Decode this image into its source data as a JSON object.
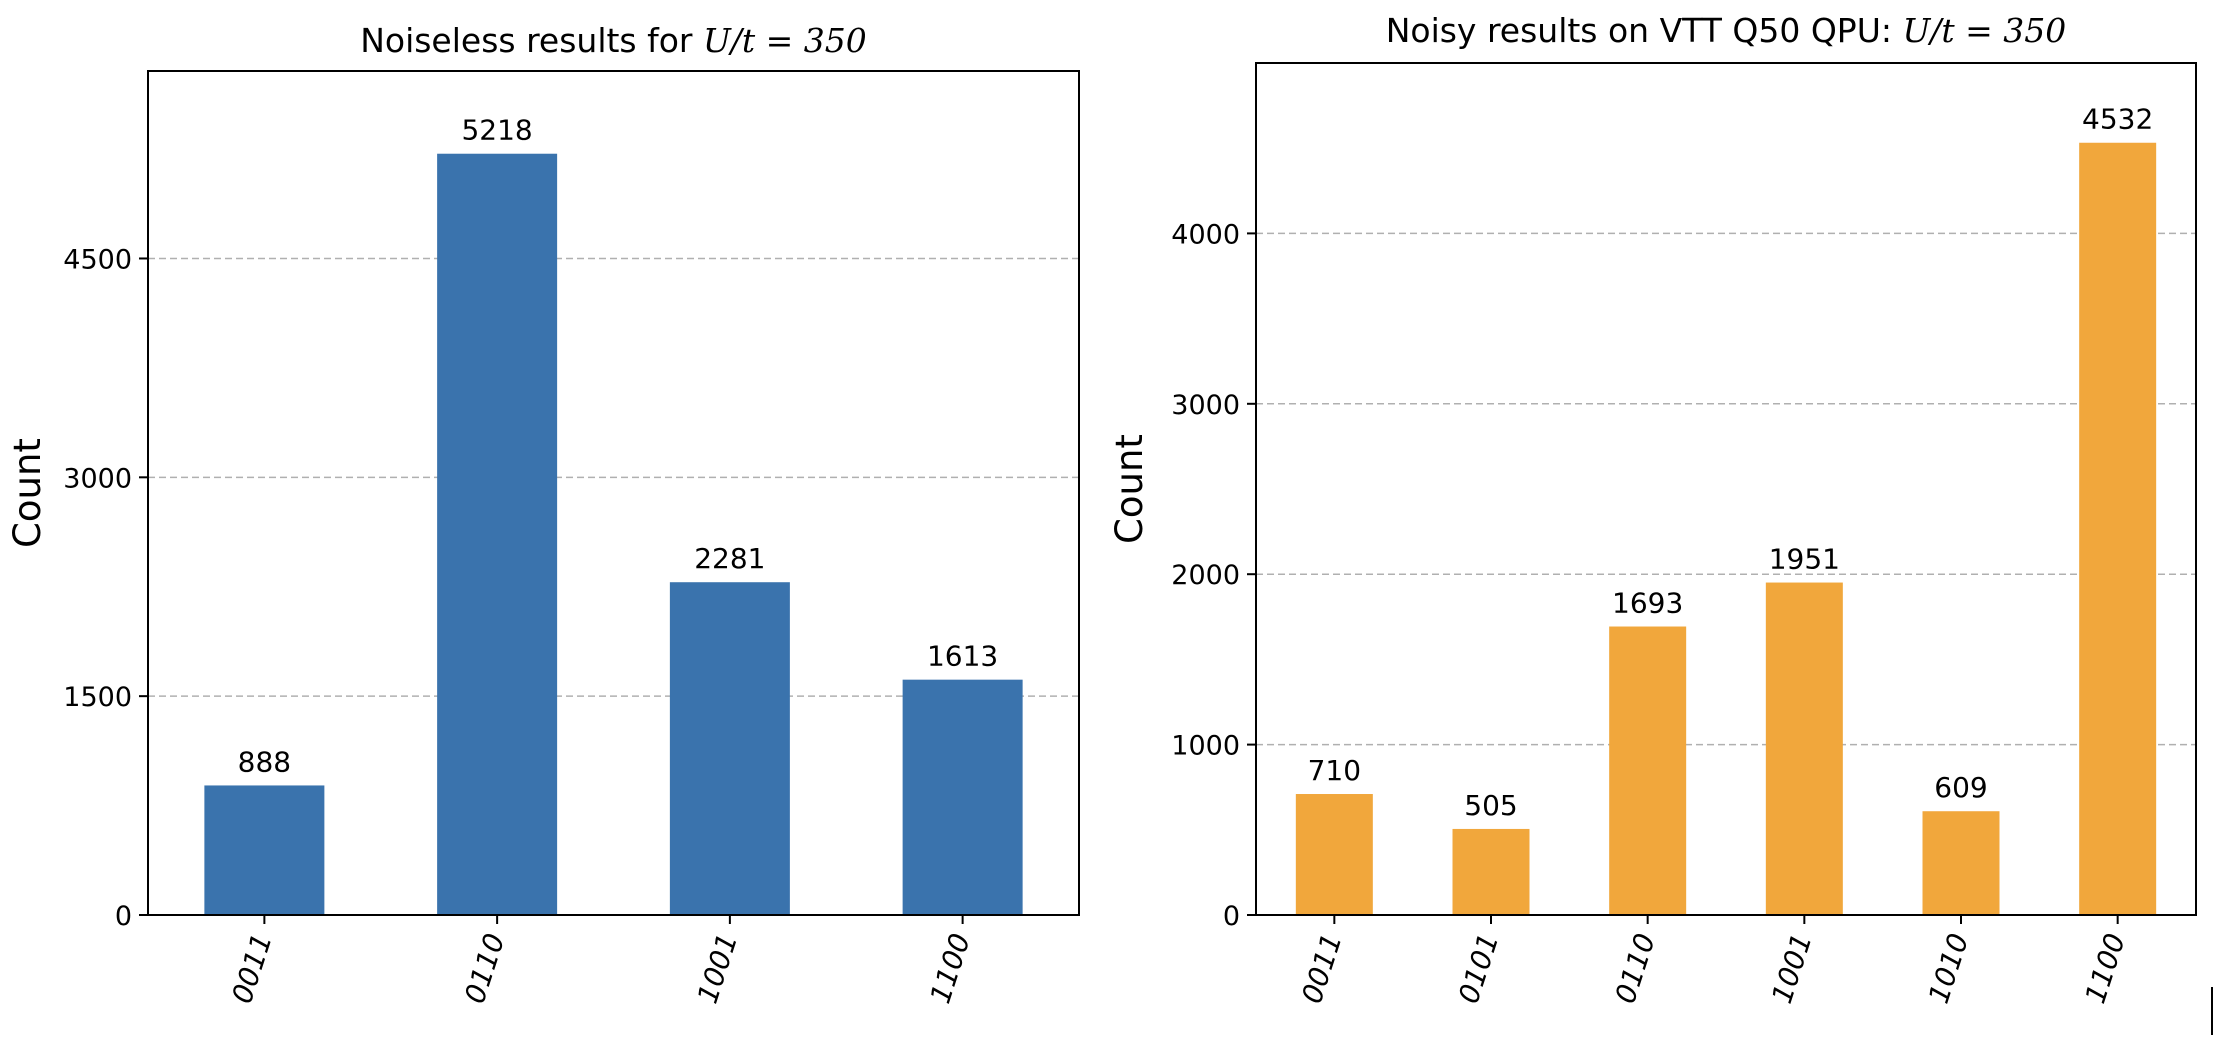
{
  "chart_data": [
    {
      "type": "bar",
      "title_prefix": "Noiseless results for ",
      "title_math": "U/t = 350",
      "xlabel": "",
      "ylabel": "Count",
      "categories": [
        "0011",
        "0110",
        "1001",
        "1100"
      ],
      "values": [
        888,
        5218,
        2281,
        1613
      ],
      "ylim": [
        0,
        5785
      ],
      "yticks": [
        0,
        1500,
        3000,
        4500
      ],
      "grid": "y dashed",
      "bar_color": "#3a73ad"
    },
    {
      "type": "bar",
      "title_prefix": "Noisy results on VTT Q50 QPU: ",
      "title_math": "U/t = 350",
      "xlabel": "",
      "ylabel": "Count",
      "categories": [
        "0011",
        "0101",
        "0110",
        "1001",
        "1010",
        "1100"
      ],
      "values": [
        710,
        505,
        1693,
        1951,
        609,
        4532
      ],
      "ylim": [
        0,
        5000
      ],
      "yticks": [
        0,
        1000,
        2000,
        3000,
        4000
      ],
      "grid": "y dashed",
      "bar_color": "#f1a73c"
    }
  ]
}
